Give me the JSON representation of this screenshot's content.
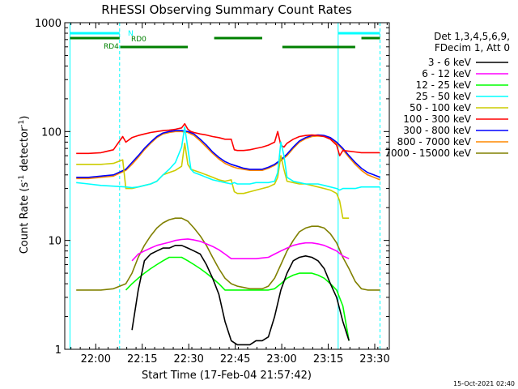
{
  "chart_data": {
    "type": "line",
    "title": "RHESSI Observing Summary Count Rates",
    "xlabel": "Start Time (17-Feb-04 21:57:42)",
    "ylabel_parts": [
      "Count Rate (s",
      "-1",
      " detector",
      "-1",
      ")"
    ],
    "y_scale": "log",
    "ylim": [
      1,
      1000
    ],
    "xlim_minutes": [
      -7.7,
      97
    ],
    "x_tick_minutes": [
      2.3,
      17.3,
      32.3,
      47.3,
      62.3,
      77.3,
      92.3
    ],
    "x_tick_labels": [
      "22:00",
      "22:15",
      "22:30",
      "22:45",
      "23:00",
      "23:15",
      "23:30"
    ],
    "y_ticks": [
      1,
      10,
      100,
      1000
    ],
    "y_tick_labels": [
      "1",
      "10",
      "100",
      "1000"
    ],
    "legend_header": [
      "Det 1,3,4,5,6,9,",
      "FDecim 1, Att 0"
    ],
    "series": [
      {
        "name": "3 - 6 keV",
        "color": "#000000",
        "x": [
          0,
          12,
          14,
          16,
          18,
          20,
          22,
          24,
          26,
          28,
          30,
          32,
          34,
          36,
          38,
          40,
          42,
          44,
          46,
          48,
          50,
          52,
          54,
          56,
          58,
          60,
          62,
          64,
          66,
          68,
          70,
          72,
          74,
          76,
          78,
          80,
          82,
          84,
          86
        ],
        "values": [
          null,
          null,
          1.5,
          3.5,
          6.5,
          7.5,
          8,
          8.5,
          8.5,
          9,
          9,
          8.5,
          8,
          7.5,
          6,
          4.5,
          3.2,
          1.8,
          1.2,
          1.1,
          1.1,
          1.1,
          1.2,
          1.2,
          1.3,
          2.0,
          3.5,
          5,
          6.5,
          7,
          7.2,
          7,
          6.5,
          5.5,
          4,
          3,
          1.8,
          1.2,
          null
        ]
      },
      {
        "name": "6 - 12 keV",
        "color": "#ff00ff",
        "x": [
          -6,
          8,
          12,
          14,
          16,
          18,
          20,
          22,
          24,
          26,
          28,
          30,
          32,
          34,
          36,
          38,
          40,
          42,
          44,
          46,
          48,
          50,
          52,
          54,
          56,
          58,
          60,
          62,
          64,
          66,
          68,
          70,
          72,
          74,
          76,
          78,
          80,
          82,
          84,
          86,
          88,
          90,
          92,
          94
        ],
        "values": [
          null,
          null,
          null,
          6.5,
          7.5,
          8,
          8.5,
          9,
          9.3,
          9.6,
          10,
          10.2,
          10.3,
          10.1,
          9.8,
          9.3,
          8.8,
          8.2,
          7.5,
          6.8,
          6.8,
          6.8,
          6.8,
          6.8,
          6.9,
          7,
          7.5,
          8,
          8.5,
          9,
          9.3,
          9.5,
          9.5,
          9.3,
          9,
          8.5,
          8,
          7.2,
          6.8,
          null,
          null,
          null,
          null,
          null
        ]
      },
      {
        "name": "12 - 25 keV",
        "color": "#00ff00",
        "x": [
          -6,
          10,
          12,
          14,
          16,
          18,
          20,
          22,
          24,
          26,
          28,
          30,
          32,
          34,
          36,
          38,
          40,
          42,
          44,
          46,
          48,
          50,
          52,
          54,
          56,
          58,
          60,
          62,
          64,
          66,
          68,
          70,
          72,
          74,
          76,
          78,
          80,
          82,
          84,
          86
        ],
        "values": [
          null,
          null,
          3.5,
          4.0,
          4.5,
          5,
          5.5,
          6,
          6.5,
          7,
          7,
          7,
          6.5,
          6,
          5.5,
          5,
          4.5,
          4,
          3.5,
          3.5,
          3.5,
          3.5,
          3.5,
          3.5,
          3.5,
          3.5,
          3.6,
          4,
          4.5,
          4.8,
          5,
          5,
          5,
          4.8,
          4.5,
          4,
          3.5,
          2.5,
          1.2,
          null
        ]
      },
      {
        "name": "25 - 50 keV",
        "color": "#00ffff",
        "x": [
          -6,
          -4,
          0,
          4,
          8,
          12,
          14,
          16,
          18,
          20,
          22,
          24,
          26,
          28,
          30,
          31,
          32,
          33,
          34,
          36,
          38,
          40,
          42,
          44,
          46,
          47,
          48,
          50,
          52,
          54,
          56,
          58,
          60,
          61,
          62,
          63,
          64,
          66,
          68,
          70,
          72,
          74,
          76,
          78,
          80,
          81,
          82,
          84,
          86,
          88,
          90,
          92,
          94
        ],
        "values": [
          null,
          34,
          33,
          32,
          31.5,
          31,
          30.5,
          31,
          32,
          33,
          35,
          40,
          45,
          52,
          72,
          110,
          70,
          45,
          42,
          40,
          38,
          36,
          35,
          34,
          33,
          34,
          33,
          33,
          33,
          34,
          34,
          34,
          35,
          42,
          80,
          60,
          38,
          35,
          34,
          33,
          33,
          33,
          32,
          31,
          30,
          29,
          30,
          30,
          30,
          31,
          31,
          31,
          31
        ]
      },
      {
        "name": "50 - 100 keV",
        "color": "#cccc00",
        "x": [
          -6,
          -4,
          0,
          4,
          8,
          11,
          12,
          14,
          16,
          18,
          20,
          22,
          24,
          26,
          28,
          30,
          31,
          32,
          33,
          34,
          36,
          38,
          40,
          42,
          44,
          46,
          47,
          48,
          50,
          52,
          54,
          56,
          58,
          60,
          61,
          62,
          63,
          64,
          66,
          68,
          70,
          72,
          74,
          76,
          78,
          80,
          81,
          82,
          84,
          86,
          88,
          90,
          92,
          94
        ],
        "values": [
          null,
          50,
          50,
          50,
          51,
          55,
          30,
          30,
          31,
          32,
          33,
          35,
          40,
          42,
          44,
          48,
          78,
          50,
          45,
          44,
          42,
          40,
          38,
          36,
          35,
          36,
          28,
          27,
          27,
          28,
          29,
          30,
          31,
          33,
          38,
          60,
          45,
          35,
          34,
          33,
          33,
          32,
          31,
          30,
          29,
          27,
          23,
          16,
          16,
          null,
          null,
          null,
          null,
          null
        ]
      },
      {
        "name": "100 - 300 keV",
        "color": "#ff0000",
        "x": [
          -6,
          -4,
          0,
          4,
          8,
          11,
          12,
          14,
          16,
          18,
          20,
          22,
          24,
          26,
          28,
          30,
          31,
          32,
          33,
          34,
          36,
          38,
          40,
          42,
          44,
          46,
          47,
          48,
          50,
          52,
          54,
          56,
          58,
          60,
          61,
          62,
          63,
          64,
          66,
          68,
          70,
          72,
          74,
          76,
          78,
          80,
          81,
          82,
          84,
          86,
          88,
          90,
          92,
          94
        ],
        "values": [
          null,
          63,
          63,
          64,
          68,
          90,
          80,
          88,
          92,
          95,
          98,
          100,
          102,
          103,
          105,
          108,
          118,
          105,
          100,
          98,
          95,
          93,
          90,
          88,
          85,
          85,
          68,
          67,
          67,
          68,
          70,
          72,
          75,
          80,
          100,
          75,
          72,
          78,
          85,
          90,
          92,
          93,
          92,
          90,
          85,
          75,
          60,
          67,
          66,
          65,
          64,
          64,
          64,
          64
        ]
      },
      {
        "name": "300 - 800 keV",
        "color": "#0000ff",
        "x": [
          -6,
          -4,
          0,
          4,
          8,
          12,
          14,
          16,
          18,
          20,
          22,
          24,
          26,
          28,
          30,
          32,
          34,
          36,
          38,
          40,
          42,
          44,
          46,
          48,
          50,
          52,
          54,
          56,
          58,
          60,
          62,
          64,
          66,
          68,
          70,
          72,
          74,
          76,
          78,
          80,
          82,
          84,
          86,
          88,
          90,
          92,
          94
        ],
        "values": [
          null,
          38,
          38,
          39,
          40,
          45,
          52,
          60,
          70,
          80,
          90,
          97,
          100,
          102,
          102,
          100,
          95,
          85,
          75,
          65,
          58,
          53,
          50,
          48,
          46,
          45,
          45,
          45,
          47,
          50,
          55,
          62,
          72,
          82,
          88,
          92,
          93,
          92,
          88,
          80,
          70,
          60,
          52,
          46,
          42,
          40,
          38
        ]
      },
      {
        "name": "800 - 7000 keV",
        "color": "#ff8800",
        "x": [
          -6,
          -4,
          0,
          4,
          8,
          12,
          14,
          16,
          18,
          20,
          22,
          24,
          26,
          28,
          30,
          32,
          34,
          36,
          38,
          40,
          42,
          44,
          46,
          48,
          50,
          52,
          54,
          56,
          58,
          60,
          62,
          64,
          66,
          68,
          70,
          72,
          74,
          76,
          78,
          80,
          82,
          84,
          86,
          88,
          90,
          92,
          94
        ],
        "values": [
          null,
          37,
          37,
          38,
          39,
          44,
          50,
          58,
          68,
          78,
          88,
          95,
          98,
          100,
          100,
          98,
          92,
          82,
          72,
          63,
          56,
          51,
          48,
          46,
          45,
          44,
          44,
          44,
          46,
          49,
          54,
          60,
          70,
          80,
          86,
          90,
          91,
          90,
          86,
          78,
          68,
          58,
          50,
          44,
          40,
          38,
          36
        ]
      },
      {
        "name": "7000 - 15000 keV",
        "color": "#808000",
        "x": [
          -6,
          -4,
          0,
          4,
          8,
          12,
          14,
          16,
          18,
          20,
          22,
          24,
          26,
          28,
          30,
          32,
          34,
          36,
          38,
          40,
          42,
          44,
          46,
          48,
          50,
          52,
          54,
          56,
          58,
          60,
          62,
          64,
          66,
          68,
          70,
          72,
          74,
          76,
          78,
          80,
          82,
          84,
          86,
          88,
          90,
          92,
          94
        ],
        "values": [
          null,
          3.5,
          3.5,
          3.5,
          3.6,
          4,
          5,
          7,
          9,
          11,
          13,
          14.5,
          15.5,
          16,
          16,
          15,
          13,
          11,
          9,
          7,
          5.5,
          4.5,
          4,
          3.8,
          3.7,
          3.6,
          3.6,
          3.6,
          3.8,
          4.5,
          6,
          8,
          10,
          12,
          13,
          13.5,
          13.5,
          13,
          11.5,
          9.5,
          7,
          5.5,
          4.2,
          3.6,
          3.5,
          3.5,
          3.5
        ]
      }
    ],
    "flags": [
      {
        "label": "N",
        "color": "#00ffff",
        "segments": [
          [
            -6,
            10
          ],
          [
            80.5,
            94
          ]
        ]
      },
      {
        "label": "RD0",
        "color": "#008000",
        "segments": [
          [
            -6,
            10
          ],
          [
            40.5,
            56
          ],
          [
            88,
            94
          ]
        ]
      },
      {
        "label": "RD4",
        "color": "#008000",
        "segments": [
          [
            10.2,
            32
          ],
          [
            62.5,
            86
          ]
        ]
      }
    ],
    "vlines_solid_minutes": [
      -6,
      80.5
    ],
    "vlines_dashed_minutes": [
      10,
      94
    ]
  },
  "timestamp": "15-Oct-2021 02:40"
}
